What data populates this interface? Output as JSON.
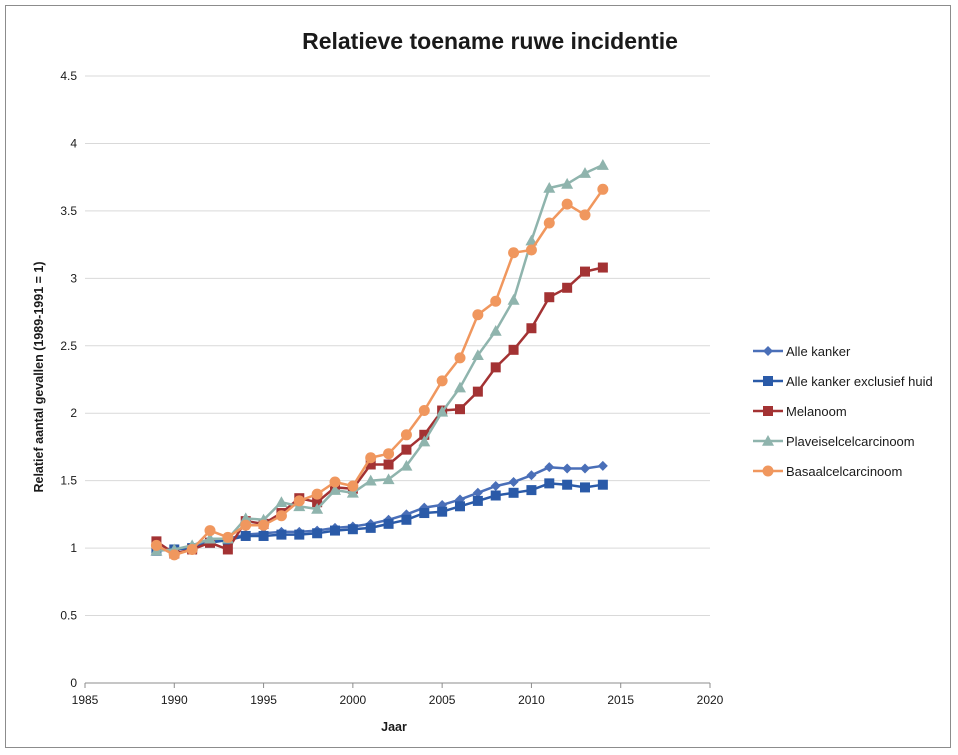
{
  "chart_data": {
    "type": "line",
    "title": "Relatieve toename ruwe incidentie",
    "xlabel": "Jaar",
    "ylabel": "Relatief aantal gevallen (1989-1991 = 1)",
    "xlim": [
      1985,
      2020
    ],
    "ylim": [
      0,
      4.5
    ],
    "xticks": [
      1985,
      1990,
      1995,
      2000,
      2005,
      2010,
      2015,
      2020
    ],
    "yticks": [
      0,
      0.5,
      1,
      1.5,
      2,
      2.5,
      3,
      3.5,
      4,
      4.5
    ],
    "grid": "horizontal",
    "legend_position": "right",
    "x": [
      1989,
      1990,
      1991,
      1992,
      1993,
      1994,
      1995,
      1996,
      1997,
      1998,
      1999,
      2000,
      2001,
      2002,
      2003,
      2004,
      2005,
      2006,
      2007,
      2008,
      2009,
      2010,
      2011,
      2012,
      2013,
      2014
    ],
    "series": [
      {
        "name": "Alle kanker",
        "color": "#4a6fb8",
        "marker": "diamond",
        "values": [
          1.0,
          0.99,
          1.01,
          1.05,
          1.07,
          1.1,
          1.11,
          1.12,
          1.12,
          1.13,
          1.15,
          1.16,
          1.18,
          1.21,
          1.25,
          1.3,
          1.32,
          1.36,
          1.41,
          1.46,
          1.49,
          1.54,
          1.6,
          1.59,
          1.59,
          1.61
        ]
      },
      {
        "name": "Alle kanker exclusief huid",
        "color": "#2a5aa8",
        "marker": "square",
        "values": [
          0.98,
          0.99,
          1.0,
          1.04,
          1.06,
          1.09,
          1.09,
          1.1,
          1.1,
          1.11,
          1.13,
          1.14,
          1.15,
          1.18,
          1.21,
          1.26,
          1.27,
          1.31,
          1.35,
          1.39,
          1.41,
          1.43,
          1.48,
          1.47,
          1.45,
          1.47
        ]
      },
      {
        "name": "Melanoom",
        "color": "#a33233",
        "marker": "square",
        "values": [
          1.05,
          0.96,
          0.99,
          1.04,
          0.99,
          1.2,
          1.18,
          1.26,
          1.37,
          1.34,
          1.45,
          1.44,
          1.62,
          1.62,
          1.73,
          1.84,
          2.02,
          2.03,
          2.16,
          2.34,
          2.47,
          2.63,
          2.86,
          2.93,
          3.05,
          3.08
        ]
      },
      {
        "name": "Plaveiselcelcarcinoom",
        "color": "#8fb4ad",
        "marker": "triangle",
        "values": [
          0.98,
          0.99,
          1.02,
          1.07,
          1.07,
          1.22,
          1.21,
          1.34,
          1.31,
          1.29,
          1.43,
          1.41,
          1.5,
          1.51,
          1.61,
          1.79,
          2.01,
          2.19,
          2.43,
          2.61,
          2.84,
          3.28,
          3.67,
          3.7,
          3.78,
          3.84
        ]
      },
      {
        "name": "Basaalcelcarcinoom",
        "color": "#f0975e",
        "marker": "circle",
        "values": [
          1.02,
          0.95,
          0.99,
          1.13,
          1.08,
          1.17,
          1.17,
          1.24,
          1.35,
          1.4,
          1.49,
          1.46,
          1.67,
          1.7,
          1.84,
          2.02,
          2.24,
          2.41,
          2.73,
          2.83,
          3.19,
          3.21,
          3.41,
          3.55,
          3.47,
          3.66
        ]
      }
    ]
  }
}
